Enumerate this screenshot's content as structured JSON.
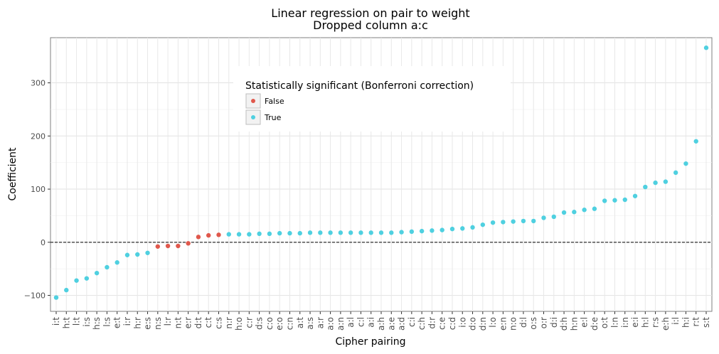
{
  "chart_data": {
    "type": "scatter",
    "title": "Linear regression on pair to weight",
    "subtitle": "Dropped column a:c",
    "xlabel": "Cipher pairing",
    "ylabel": "Coefficient",
    "ylim": [
      -130,
      385
    ],
    "yticks": [
      -100,
      0,
      100,
      200,
      300
    ],
    "yticklabels": [
      "−100",
      "0",
      "100",
      "200",
      "300"
    ],
    "reference_line": {
      "y": 0,
      "style": "dashed",
      "color": "#000000"
    },
    "grid": true,
    "legend": {
      "title": "Statistically significant (Bonferroni correction)",
      "placement": "top-center",
      "entries": [
        {
          "label": "False",
          "color": "#e0584c"
        },
        {
          "label": "True",
          "color": "#4fd0e0"
        }
      ]
    },
    "categories": [
      "i:t",
      "h:t",
      "l:t",
      "i:s",
      "h:s",
      "l:s",
      "e:t",
      "i:r",
      "h:r",
      "e:s",
      "n:s",
      "l:r",
      "n:t",
      "e:r",
      "d:t",
      "c:t",
      "c:s",
      "n:r",
      "h:o",
      "c:r",
      "d:s",
      "c:o",
      "e:o",
      "c:n",
      "a:t",
      "a:s",
      "a:r",
      "a:o",
      "a:n",
      "a:l",
      "c:l",
      "a:i",
      "a:h",
      "a:e",
      "a:d",
      "c:i",
      "c:h",
      "d:r",
      "c:e",
      "c:d",
      "i:o",
      "d:o",
      "d:n",
      "l:o",
      "e:n",
      "n:o",
      "d:l",
      "o:s",
      "o:r",
      "d:i",
      "d:h",
      "h:n",
      "e:l",
      "d:e",
      "o:t",
      "l:n",
      "i:n",
      "e:i",
      "h:l",
      "r:s",
      "e:h",
      "i:l",
      "h:i",
      "r:t",
      "s:t"
    ],
    "values": [
      -104,
      -90,
      -72,
      -68,
      -58,
      -47,
      -38,
      -24,
      -23,
      -20,
      -8,
      -7,
      -7,
      -2,
      10,
      13,
      14,
      15,
      15,
      15,
      16,
      16,
      17,
      17,
      17,
      18,
      18,
      18,
      18,
      18,
      18,
      18,
      18,
      18,
      19,
      20,
      21,
      22,
      23,
      25,
      26,
      28,
      33,
      37,
      38,
      39,
      40,
      40,
      46,
      48,
      56,
      57,
      61,
      63,
      78,
      79,
      80,
      87,
      104,
      112,
      114,
      131,
      148,
      190,
      366
    ],
    "significant": [
      true,
      true,
      true,
      true,
      true,
      true,
      true,
      true,
      true,
      true,
      false,
      false,
      false,
      false,
      false,
      false,
      false,
      true,
      true,
      true,
      true,
      true,
      true,
      true,
      true,
      true,
      true,
      true,
      true,
      true,
      true,
      true,
      true,
      true,
      true,
      true,
      true,
      true,
      true,
      true,
      true,
      true,
      true,
      true,
      true,
      true,
      true,
      true,
      true,
      true,
      true,
      true,
      true,
      true,
      true,
      true,
      true,
      true,
      true,
      true,
      true,
      true,
      true,
      true,
      true
    ]
  }
}
